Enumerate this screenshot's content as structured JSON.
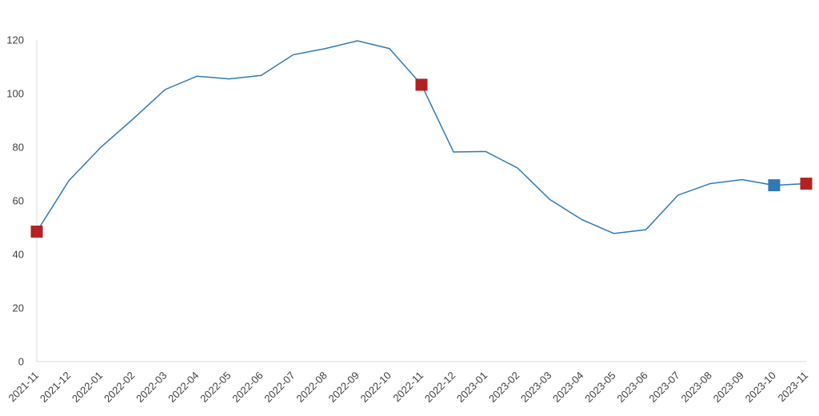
{
  "chart_data": {
    "type": "line",
    "title": "",
    "xlabel": "",
    "ylabel": "",
    "ylim": [
      0,
      120
    ],
    "yticks": [
      0,
      20,
      40,
      60,
      80,
      100,
      120
    ],
    "grid": false,
    "legend": "none",
    "categories": [
      "2021-11",
      "2021-12",
      "2022-01",
      "2022-02",
      "2022-03",
      "2022-04",
      "2022-05",
      "2022-06",
      "2022-07",
      "2022-08",
      "2022-09",
      "2022-10",
      "2022-11",
      "2022-12",
      "2023-01",
      "2023-02",
      "2023-03",
      "2023-04",
      "2023-05",
      "2023-06",
      "2023-07",
      "2023-08",
      "2023-09",
      "2023-10",
      "2023-11"
    ],
    "series": [
      {
        "values": [
          48.5,
          67.5,
          80,
          90.5,
          101.5,
          106.5,
          105.5,
          106.8,
          114.5,
          116.8,
          119.7,
          116.8,
          103.3,
          78.2,
          78.4,
          72.2,
          60.5,
          53,
          47.8,
          49.2,
          62.1,
          66.4,
          67.9,
          65.8,
          66.4
        ],
        "color": "#2e7ab6"
      }
    ],
    "markers": [
      {
        "category": "2021-11",
        "value": 48.5,
        "color": "#b22222"
      },
      {
        "category": "2022-11",
        "value": 103.3,
        "color": "#b22222"
      },
      {
        "category": "2023-10",
        "value": 65.8,
        "color": "#2e7ab6"
      },
      {
        "category": "2023-11",
        "value": 66.4,
        "color": "#b22222"
      }
    ]
  }
}
